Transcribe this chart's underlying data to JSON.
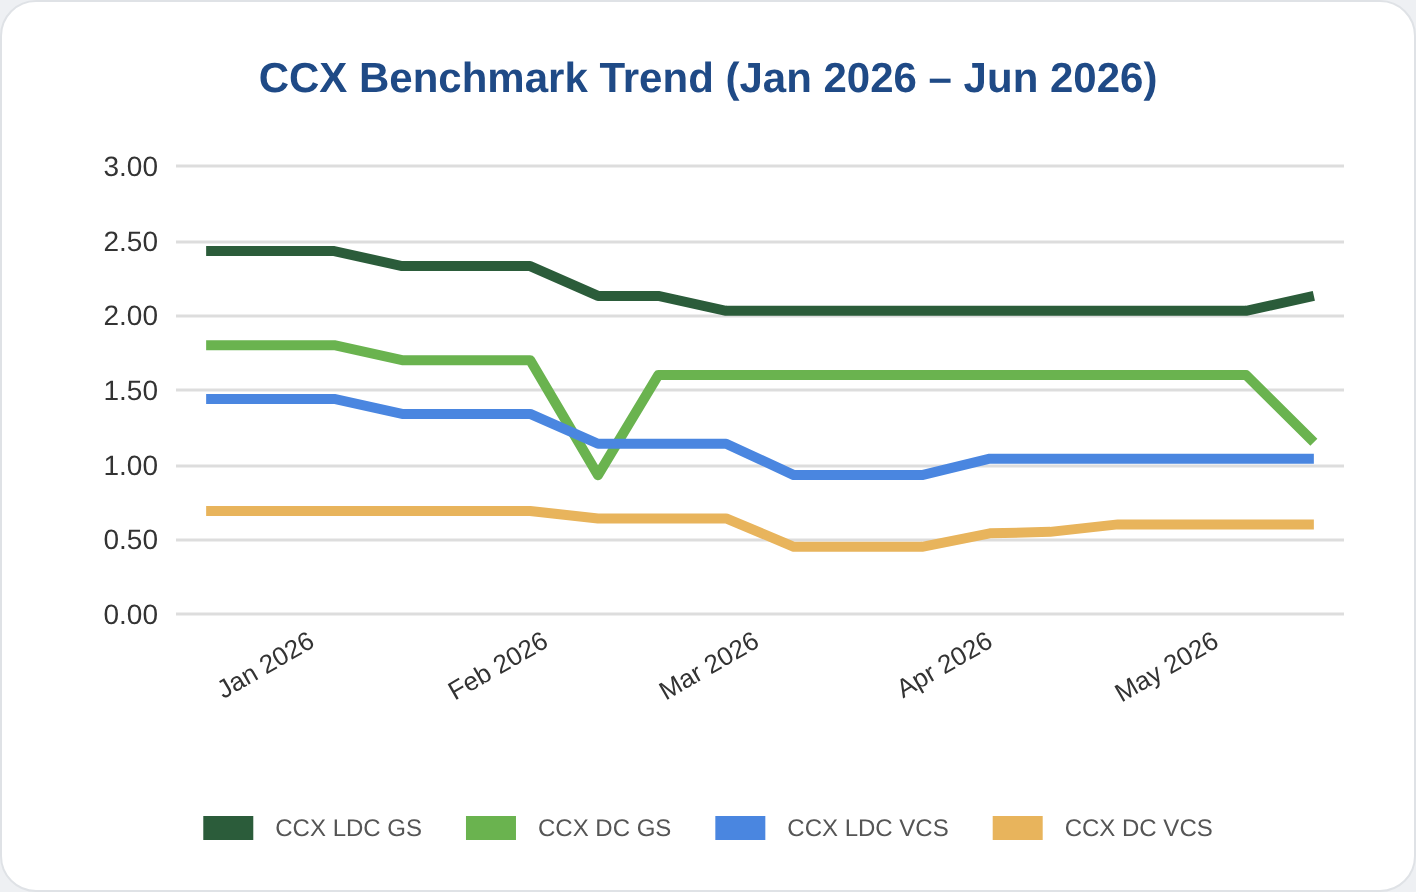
{
  "chart_data": {
    "type": "line",
    "title": "CCX Benchmark Trend (Jan 2026 – Jun 2026)",
    "x": [
      "2025-12-18",
      "2025-12-27",
      "2026-01-04",
      "2026-01-13",
      "2026-01-22",
      "2026-01-30",
      "2026-02-08",
      "2026-02-16",
      "2026-02-25",
      "2026-03-06",
      "2026-03-14",
      "2026-03-23",
      "2026-04-01",
      "2026-04-09",
      "2026-04-18",
      "2026-04-26",
      "2026-05-05",
      "2026-05-14"
    ],
    "series": [
      {
        "name": "CCX LDC GS",
        "color": "#2b5c3a",
        "values": [
          2.43,
          2.43,
          2.43,
          2.33,
          2.33,
          2.33,
          2.13,
          2.13,
          2.03,
          2.03,
          2.03,
          2.03,
          2.03,
          2.03,
          2.03,
          2.03,
          2.03,
          2.13
        ]
      },
      {
        "name": "CCX DC GS",
        "color": "#6ab34f",
        "values": [
          1.8,
          1.8,
          1.8,
          1.7,
          1.7,
          1.7,
          0.93,
          1.6,
          1.6,
          1.6,
          1.6,
          1.6,
          1.6,
          1.6,
          1.6,
          1.6,
          1.6,
          1.15
        ]
      },
      {
        "name": "CCX LDC VCS",
        "color": "#4a86e0",
        "values": [
          1.44,
          1.44,
          1.44,
          1.34,
          1.34,
          1.34,
          1.14,
          1.14,
          1.14,
          0.93,
          0.93,
          0.93,
          1.04,
          1.04,
          1.04,
          1.04,
          1.04,
          1.04
        ]
      },
      {
        "name": "CCX DC VCS",
        "color": "#e8b45c",
        "values": [
          0.69,
          0.69,
          0.69,
          0.69,
          0.69,
          0.69,
          0.64,
          0.64,
          0.64,
          0.45,
          0.45,
          0.45,
          0.54,
          0.55,
          0.6,
          0.6,
          0.6,
          0.6
        ]
      }
    ],
    "xlim": [
      "2025-12-14",
      "2026-05-18"
    ],
    "xticks": [
      {
        "value": "2026-01-01",
        "label": "Jan 2026"
      },
      {
        "value": "2026-02-01",
        "label": "Feb 2026"
      },
      {
        "value": "2026-03-01",
        "label": "Mar 2026"
      },
      {
        "value": "2026-04-01",
        "label": "Apr 2026"
      },
      {
        "value": "2026-05-01",
        "label": "May 2026"
      }
    ],
    "ylim": [
      0,
      3
    ],
    "yticks": [
      {
        "value": 0,
        "label": "0.00"
      },
      {
        "value": 0.5,
        "label": "0.50"
      },
      {
        "value": 1,
        "label": "1.00"
      },
      {
        "value": 1.5,
        "label": "1.50"
      },
      {
        "value": 2,
        "label": "2.00"
      },
      {
        "value": 2.5,
        "label": "2.50"
      },
      {
        "value": 3,
        "label": "3.00"
      }
    ],
    "grid": "y",
    "legend": "bottom",
    "marker": "none",
    "line_style": "solid"
  }
}
